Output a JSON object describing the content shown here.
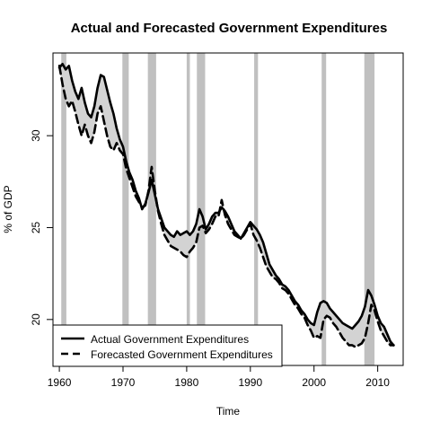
{
  "chart_data": {
    "type": "line",
    "title": "Actual and Forecasted Government Expenditures",
    "xlabel": "Time",
    "ylabel": "% of GDP",
    "xlim": [
      1959,
      2014
    ],
    "ylim": [
      17.5,
      34.5
    ],
    "x_ticks": [
      1960,
      1970,
      1980,
      1990,
      2000,
      2010
    ],
    "y_ticks": [
      20,
      25,
      30
    ],
    "recession_shading": [
      [
        1960.3,
        1961.1
      ],
      [
        1969.9,
        1970.9
      ],
      [
        1973.9,
        1975.2
      ],
      [
        1980.0,
        1980.5
      ],
      [
        1981.6,
        1982.9
      ],
      [
        1990.6,
        1991.2
      ],
      [
        2001.2,
        2001.9
      ],
      [
        2007.9,
        2009.5
      ]
    ],
    "legend": {
      "position": "bottom-left",
      "entries": [
        {
          "label": "Actual Government Expenditures",
          "style": "solid"
        },
        {
          "label": "Forecasted Government Expenditures",
          "style": "dashed"
        }
      ]
    },
    "series": [
      {
        "name": "Actual Government Expenditures",
        "color": "#000000",
        "style": "solid",
        "x": [
          1960,
          1960.5,
          1961,
          1961.5,
          1962,
          1962.5,
          1963,
          1963.5,
          1964,
          1964.5,
          1965,
          1965.5,
          1966,
          1966.5,
          1967,
          1967.5,
          1968,
          1968.5,
          1969,
          1969.5,
          1970,
          1970.5,
          1971,
          1971.5,
          1972,
          1972.5,
          1973,
          1973.5,
          1974,
          1974.5,
          1975,
          1975.5,
          1976,
          1976.5,
          1977,
          1977.5,
          1978,
          1978.5,
          1979,
          1979.5,
          1980,
          1980.5,
          1981,
          1981.5,
          1982,
          1982.5,
          1983,
          1983.5,
          1984,
          1984.5,
          1985,
          1985.5,
          1986,
          1986.5,
          1987,
          1987.5,
          1988,
          1988.5,
          1989,
          1989.5,
          1990,
          1990.5,
          1991,
          1991.5,
          1992,
          1992.5,
          1993,
          1993.5,
          1994,
          1994.5,
          1995,
          1995.5,
          1996,
          1996.5,
          1997,
          1997.5,
          1998,
          1998.5,
          1999,
          1999.5,
          2000,
          2000.5,
          2001,
          2001.5,
          2002,
          2002.5,
          2003,
          2003.5,
          2004,
          2004.5,
          2005,
          2005.5,
          2006,
          2006.5,
          2007,
          2007.5,
          2008,
          2008.5,
          2009,
          2009.5,
          2010,
          2010.5,
          2011,
          2011.5,
          2012,
          2012.5
        ],
        "values": [
          33.7,
          33.9,
          33.6,
          33.8,
          33.0,
          32.4,
          32.0,
          32.6,
          31.8,
          31.2,
          31.0,
          31.6,
          32.6,
          33.3,
          33.2,
          32.5,
          31.8,
          31.2,
          30.4,
          29.8,
          29.4,
          28.6,
          28.0,
          27.6,
          27.0,
          26.6,
          26.0,
          26.3,
          26.9,
          27.6,
          26.8,
          26.0,
          25.5,
          25.0,
          24.8,
          24.6,
          24.5,
          24.8,
          24.6,
          24.7,
          24.8,
          24.6,
          24.8,
          25.2,
          26.0,
          25.6,
          24.9,
          25.2,
          25.6,
          25.8,
          25.8,
          26.1,
          25.9,
          25.6,
          25.2,
          24.8,
          24.6,
          24.4,
          24.7,
          25.0,
          25.3,
          25.1,
          24.9,
          24.6,
          24.2,
          23.6,
          23.0,
          22.7,
          22.4,
          22.2,
          21.9,
          21.8,
          21.6,
          21.3,
          21.0,
          20.8,
          20.5,
          20.3,
          20.0,
          19.8,
          19.7,
          20.4,
          20.9,
          21.0,
          20.9,
          20.6,
          20.4,
          20.2,
          20.0,
          19.8,
          19.7,
          19.6,
          19.5,
          19.7,
          19.9,
          20.2,
          20.7,
          21.6,
          21.3,
          20.8,
          20.2,
          19.8,
          19.6,
          19.2,
          18.8,
          18.6
        ]
      },
      {
        "name": "Forecasted Government Expenditures",
        "color": "#000000",
        "style": "dashed",
        "x": [
          1960,
          1960.5,
          1961,
          1961.5,
          1962,
          1962.5,
          1963,
          1963.5,
          1964,
          1964.5,
          1965,
          1965.5,
          1966,
          1966.5,
          1967,
          1967.5,
          1968,
          1968.5,
          1969,
          1969.5,
          1970,
          1970.5,
          1971,
          1971.5,
          1972,
          1972.5,
          1973,
          1973.5,
          1974,
          1974.5,
          1975,
          1975.5,
          1976,
          1976.5,
          1977,
          1977.5,
          1978,
          1978.5,
          1979,
          1979.5,
          1980,
          1980.5,
          1981,
          1981.5,
          1982,
          1982.5,
          1983,
          1983.5,
          1984,
          1984.5,
          1985,
          1985.5,
          1986,
          1986.5,
          1987,
          1987.5,
          1988,
          1988.5,
          1989,
          1989.5,
          1990,
          1990.5,
          1991,
          1991.5,
          1992,
          1992.5,
          1993,
          1993.5,
          1994,
          1994.5,
          1995,
          1995.5,
          1996,
          1996.5,
          1997,
          1997.5,
          1998,
          1998.5,
          1999,
          1999.5,
          2000,
          2000.5,
          2001,
          2001.5,
          2002,
          2002.5,
          2003,
          2003.5,
          2004,
          2004.5,
          2005,
          2005.5,
          2006,
          2006.5,
          2007,
          2007.5,
          2008,
          2008.5,
          2009,
          2009.5,
          2010,
          2010.5,
          2011,
          2011.5,
          2012,
          2012.5
        ],
        "values": [
          33.8,
          32.8,
          32.0,
          31.6,
          31.9,
          31.3,
          30.6,
          30.0,
          30.6,
          30.0,
          29.6,
          30.2,
          31.2,
          31.6,
          30.8,
          30.0,
          29.4,
          29.2,
          29.6,
          29.2,
          29.0,
          28.2,
          27.7,
          27.2,
          26.7,
          26.4,
          26.1,
          26.2,
          27.0,
          28.3,
          27.0,
          25.9,
          25.2,
          24.6,
          24.3,
          24.0,
          23.9,
          23.8,
          23.7,
          23.5,
          23.4,
          23.7,
          23.9,
          24.2,
          25.0,
          25.1,
          24.7,
          24.9,
          25.2,
          25.6,
          25.6,
          26.5,
          25.7,
          25.2,
          24.9,
          24.6,
          24.5,
          24.4,
          24.6,
          24.9,
          25.2,
          24.6,
          24.3,
          23.9,
          23.4,
          22.9,
          22.6,
          22.3,
          22.2,
          22.0,
          21.7,
          21.6,
          21.4,
          21.1,
          20.8,
          20.6,
          20.3,
          20.1,
          19.7,
          19.4,
          19.0,
          19.1,
          19.0,
          20.0,
          20.2,
          20.1,
          19.8,
          19.6,
          19.3,
          19.0,
          18.8,
          18.6,
          18.6,
          18.5,
          18.6,
          18.7,
          19.0,
          19.8,
          20.8,
          20.5,
          19.9,
          19.4,
          19.1,
          18.8,
          18.6,
          18.6
        ]
      }
    ]
  }
}
